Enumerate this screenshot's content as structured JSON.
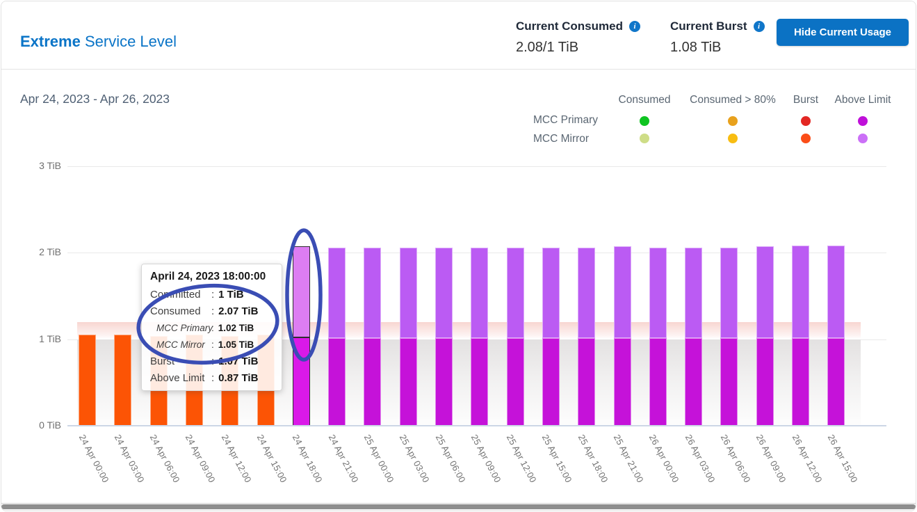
{
  "header": {
    "title_bold": "Extreme",
    "title_rest": " Service Level",
    "metrics": [
      {
        "label": "Current Consumed",
        "value": "2.08/1 TiB"
      },
      {
        "label": "Current Burst",
        "value": "1.08 TiB"
      }
    ],
    "info_icon_glyph": "i",
    "button_label": "Hide Current Usage",
    "accent_blue": "#0a74c7",
    "button_blue": "#0b72c4"
  },
  "date_range": "Apr 24, 2023 - Apr 26, 2023",
  "legend": {
    "columns": [
      "Consumed",
      "Consumed > 80%",
      "Burst",
      "Above Limit"
    ],
    "rows": [
      {
        "label": "MCC Primary",
        "colors": [
          "#0fc421",
          "#e8a11d",
          "#e32723",
          "#bf10d9"
        ]
      },
      {
        "label": "MCC Mirror",
        "colors": [
          "#cedd87",
          "#f8bd12",
          "#fb4d18",
          "#cb70f7"
        ]
      }
    ]
  },
  "tooltip": {
    "title": "April 24, 2023 18:00:00",
    "rows": [
      {
        "label": "Committed",
        "value": "1 TiB",
        "sub": false
      },
      {
        "label": "Consumed",
        "value": "2.07 TiB",
        "sub": false
      },
      {
        "label": "MCC Primary",
        "value": "1.02 TiB",
        "sub": true
      },
      {
        "label": "MCC Mirror",
        "value": "1.05 TiB",
        "sub": true
      },
      {
        "label": "Burst",
        "value": "1.07 TiB",
        "sub": false
      },
      {
        "label": "Above Limit",
        "value": "0.87 TiB",
        "sub": false
      }
    ]
  },
  "chart_data": {
    "type": "bar",
    "title": "Apr 24, 2023 - Apr 26, 2023",
    "ylabel": "TiB",
    "y_ticks": [
      "0 TiB",
      "1 TiB",
      "2 TiB",
      "3 TiB"
    ],
    "ylim": [
      0,
      3
    ],
    "committed_tib": 1,
    "burst_zone_top_tib": 1.2,
    "grid": true,
    "legend_position": "top-right",
    "colors": {
      "burst_bar": "#fc5405",
      "primary_above_limit": "#c512d9",
      "mirror_above_limit": "#bb5bf3",
      "selected_primary": "#da19e8",
      "selected_mirror": "#dd7df2",
      "committed_band": "#e3e1e1",
      "burst_band": "#f8d6d1"
    },
    "bars": [
      {
        "time": "24 Apr 00:00",
        "state": "burst",
        "total": 1.05
      },
      {
        "time": "24 Apr 03:00",
        "state": "burst",
        "total": 1.05
      },
      {
        "time": "24 Apr 06:00",
        "state": "burst",
        "total": 1.04
      },
      {
        "time": "24 Apr 09:00",
        "state": "burst",
        "total": 1.05
      },
      {
        "time": "24 Apr 12:00",
        "state": "burst",
        "total": 1.04
      },
      {
        "time": "24 Apr 15:00",
        "state": "burst",
        "total": 1.05
      },
      {
        "time": "24 Apr 18:00",
        "state": "selected",
        "mcc_primary": 1.02,
        "mcc_mirror": 1.05
      },
      {
        "time": "24 Apr 21:00",
        "state": "above_limit",
        "mcc_primary": 1.01,
        "mcc_mirror": 1.05
      },
      {
        "time": "25 Apr 00:00",
        "state": "above_limit",
        "mcc_primary": 1.01,
        "mcc_mirror": 1.05
      },
      {
        "time": "25 Apr 03:00",
        "state": "above_limit",
        "mcc_primary": 1.01,
        "mcc_mirror": 1.05
      },
      {
        "time": "25 Apr 06:00",
        "state": "above_limit",
        "mcc_primary": 1.01,
        "mcc_mirror": 1.05
      },
      {
        "time": "25 Apr 09:00",
        "state": "above_limit",
        "mcc_primary": 1.01,
        "mcc_mirror": 1.05
      },
      {
        "time": "25 Apr 12:00",
        "state": "above_limit",
        "mcc_primary": 1.01,
        "mcc_mirror": 1.05
      },
      {
        "time": "25 Apr 15:00",
        "state": "above_limit",
        "mcc_primary": 1.01,
        "mcc_mirror": 1.05
      },
      {
        "time": "25 Apr 18:00",
        "state": "above_limit",
        "mcc_primary": 1.01,
        "mcc_mirror": 1.05
      },
      {
        "time": "25 Apr 21:00",
        "state": "above_limit",
        "mcc_primary": 1.01,
        "mcc_mirror": 1.06
      },
      {
        "time": "26 Apr 00:00",
        "state": "above_limit",
        "mcc_primary": 1.01,
        "mcc_mirror": 1.05
      },
      {
        "time": "26 Apr 03:00",
        "state": "above_limit",
        "mcc_primary": 1.01,
        "mcc_mirror": 1.05
      },
      {
        "time": "26 Apr 06:00",
        "state": "above_limit",
        "mcc_primary": 1.01,
        "mcc_mirror": 1.05
      },
      {
        "time": "26 Apr 09:00",
        "state": "above_limit",
        "mcc_primary": 1.01,
        "mcc_mirror": 1.06
      },
      {
        "time": "26 Apr 12:00",
        "state": "above_limit",
        "mcc_primary": 1.01,
        "mcc_mirror": 1.07
      },
      {
        "time": "26 Apr 15:00",
        "state": "above_limit",
        "mcc_primary": 1.01,
        "mcc_mirror": 1.07
      }
    ]
  },
  "annotations": {
    "color": "#3a4db4"
  }
}
